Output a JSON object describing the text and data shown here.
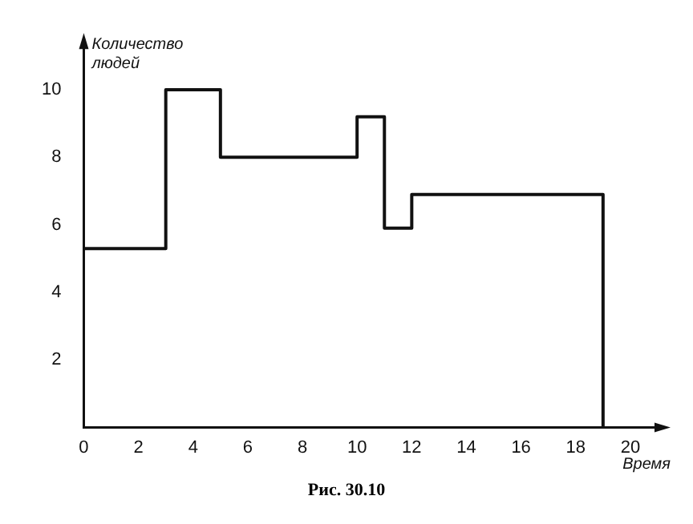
{
  "chart_data": {
    "type": "step",
    "xlabel": "Время",
    "ylabel": "Количество людей",
    "annotations": [
      "Рис. 30.10"
    ],
    "x": [
      0,
      3,
      5,
      10,
      11,
      12,
      19
    ],
    "series": [
      {
        "color": "#111111",
        "values": [
          5.3,
          10,
          8,
          9.2,
          5.9,
          6.9,
          0
        ]
      }
    ],
    "xlim": [
      0,
      21
    ],
    "ylim": [
      0,
      11.3
    ],
    "xticks": [
      0,
      2,
      4,
      6,
      8,
      10,
      12,
      14,
      16,
      18,
      20
    ],
    "yticks": [
      2,
      4,
      6,
      8,
      10
    ],
    "grid": false,
    "legend": false,
    "marker": "none",
    "line_style": "solid"
  }
}
